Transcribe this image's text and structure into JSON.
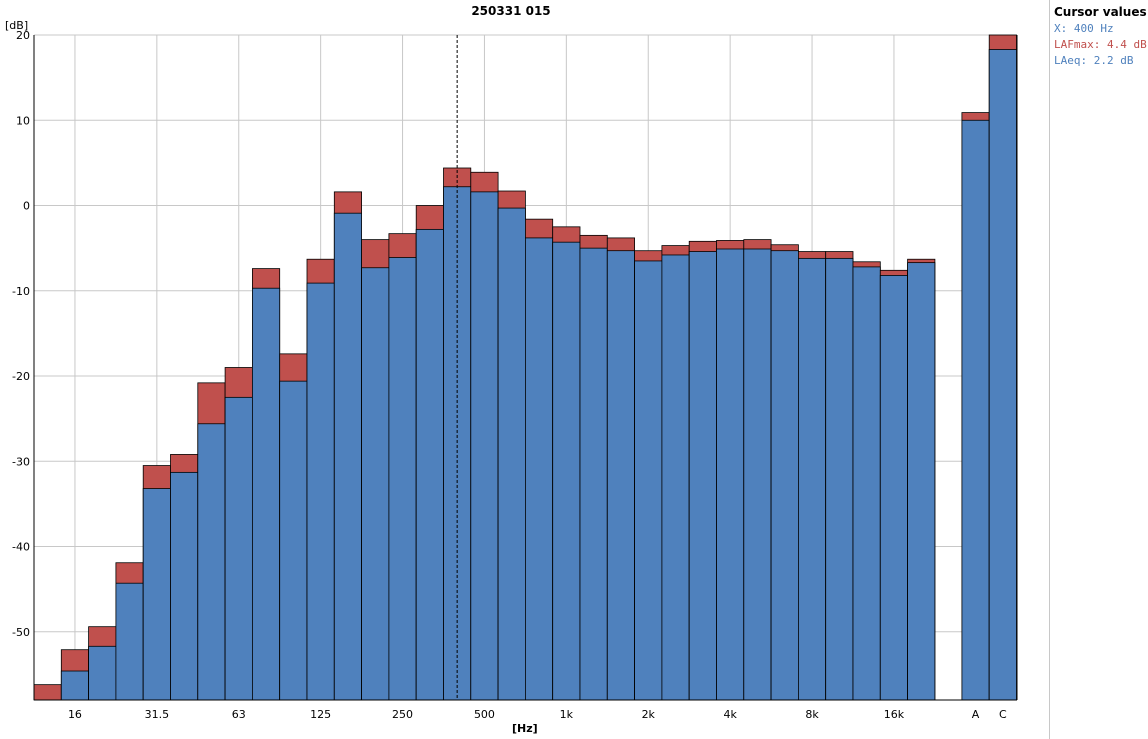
{
  "title": "250331 015",
  "y_unit": "[dB]",
  "x_unit": "[Hz]",
  "cursor_panel": {
    "title": "Cursor values",
    "x_label": "X: 400 Hz",
    "series1_label": "LAFmax: 4.4 dB",
    "series2_label": "LAeq: 2.2 dB"
  },
  "colors": {
    "lafmax": "#c0504d",
    "laeq": "#4f81bd",
    "cursor_x": "#4f81bd",
    "grid": "#c8c8c8"
  },
  "chart_data": {
    "type": "bar",
    "title": "250331 015",
    "xlabel": "[Hz]",
    "ylabel": "[dB]",
    "ylim": [
      -58,
      20
    ],
    "yticks": [
      20,
      10,
      0,
      -10,
      -20,
      -30,
      -40,
      -50
    ],
    "x_tick_labels": [
      "16",
      "31.5",
      "63",
      "125",
      "250",
      "500",
      "1k",
      "2k",
      "4k",
      "8k",
      "16k",
      "A",
      "C"
    ],
    "categories": [
      "12.5",
      "16",
      "20",
      "25",
      "31.5",
      "40",
      "50",
      "63",
      "80",
      "100",
      "125",
      "160",
      "200",
      "250",
      "315",
      "400",
      "500",
      "630",
      "800",
      "1k",
      "1.25k",
      "1.6k",
      "2k",
      "2.5k",
      "3.15k",
      "4k",
      "5k",
      "6.3k",
      "8k",
      "10k",
      "12.5k",
      "16k",
      "20k",
      "A",
      "C"
    ],
    "series": [
      {
        "name": "LAFmax",
        "values": [
          -56.2,
          -52.1,
          -49.4,
          -41.9,
          -30.5,
          -29.2,
          -20.8,
          -19.0,
          -7.4,
          -17.4,
          -6.3,
          1.6,
          -4.0,
          -3.3,
          0.0,
          4.4,
          3.9,
          1.7,
          -1.6,
          -2.5,
          -3.5,
          -3.8,
          -5.3,
          -4.7,
          -4.2,
          -4.1,
          -4.0,
          -4.6,
          -5.4,
          -5.4,
          -6.6,
          -7.6,
          -6.3,
          10.9,
          20.0
        ]
      },
      {
        "name": "LAeq",
        "values": [
          null,
          -54.6,
          -51.7,
          -44.3,
          -33.2,
          -31.3,
          -25.6,
          -22.5,
          -9.7,
          -20.6,
          -9.1,
          -0.9,
          -7.3,
          -6.1,
          -2.8,
          2.2,
          1.6,
          -0.3,
          -3.8,
          -4.3,
          -5.0,
          -5.3,
          -6.5,
          -5.8,
          -5.4,
          -5.1,
          -5.1,
          -5.3,
          -6.2,
          -6.2,
          -7.2,
          -8.2,
          -6.7,
          10.0,
          18.3
        ]
      }
    ],
    "cursor": {
      "x": "400",
      "label": "X: 400 Hz"
    },
    "grid": true,
    "legend": "top-right"
  }
}
